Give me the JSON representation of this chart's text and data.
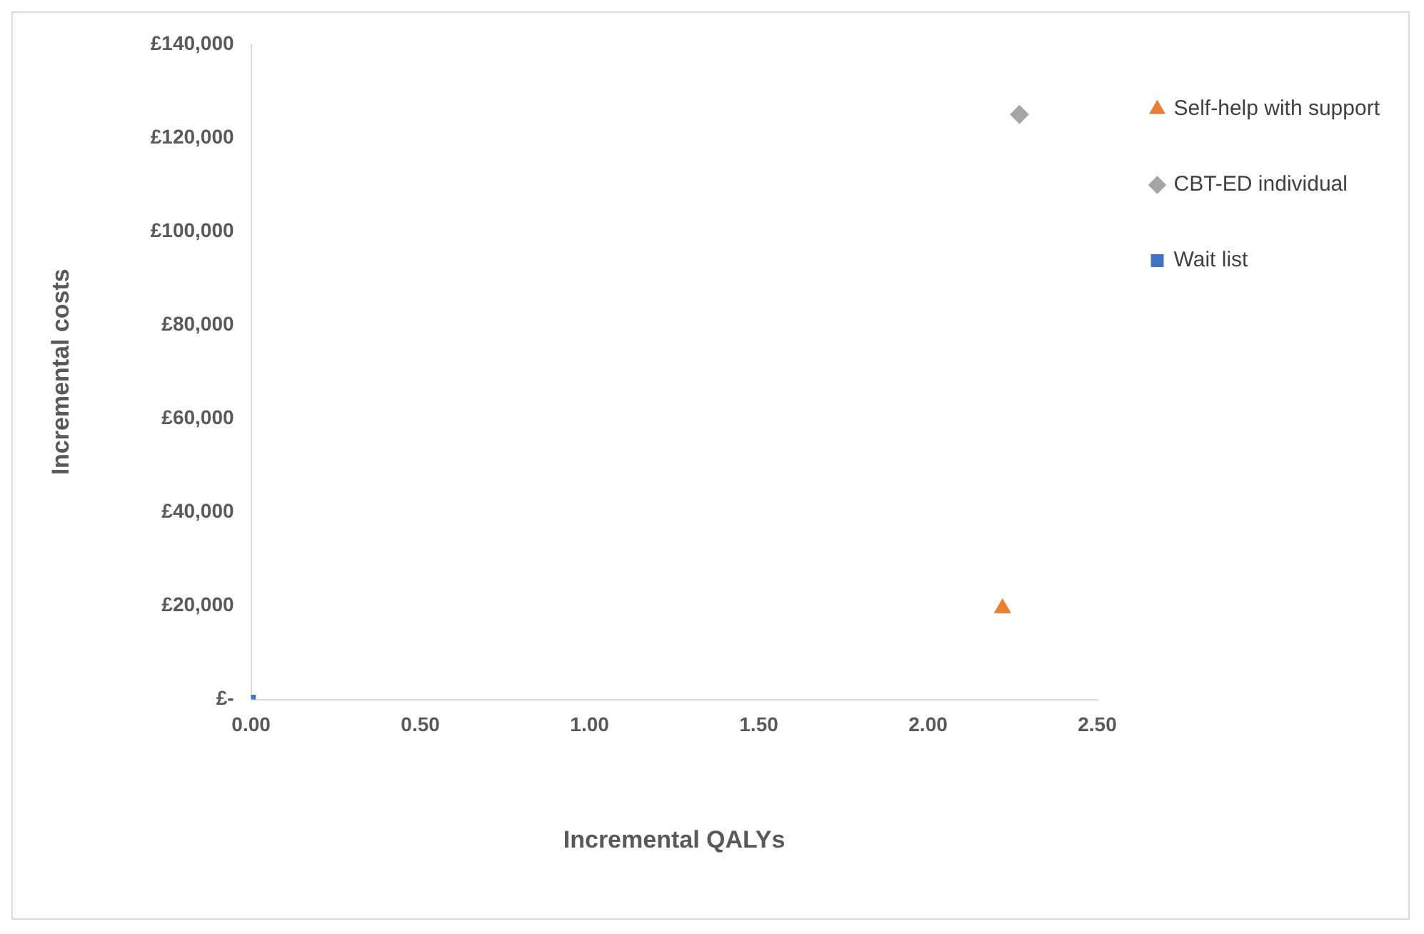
{
  "chart_data": {
    "type": "scatter",
    "xlabel": "Incremental QALYs",
    "ylabel": "Incremental costs",
    "series": [
      {
        "name": "Self-help with support",
        "color": "#ed7d31",
        "marker": "triangle",
        "x": [
          2.22
        ],
        "values": [
          19500
        ]
      },
      {
        "name": "CBT-ED individual",
        "color": "#a5a5a5",
        "marker": "diamond",
        "x": [
          2.27
        ],
        "values": [
          125000
        ]
      },
      {
        "name": "Wait list",
        "color": "#4472c4",
        "marker": "square",
        "x": [
          0
        ],
        "values": [
          0
        ]
      }
    ],
    "xlim": [
      0,
      2.5
    ],
    "xticks": [
      {
        "value": 0,
        "label": "0.00"
      },
      {
        "value": 0.5,
        "label": "0.50"
      },
      {
        "value": 1,
        "label": "1.00"
      },
      {
        "value": 1.5,
        "label": "1.50"
      },
      {
        "value": 2,
        "label": "2.00"
      },
      {
        "value": 2.5,
        "label": "2.50"
      }
    ],
    "ylim": [
      0,
      140000
    ],
    "yticks": [
      {
        "value": 0,
        "label": "£-"
      },
      {
        "value": 20000,
        "label": "£20,000"
      },
      {
        "value": 40000,
        "label": "£40,000"
      },
      {
        "value": 60000,
        "label": "£60,000"
      },
      {
        "value": 80000,
        "label": "£80,000"
      },
      {
        "value": 100000,
        "label": "£100,000"
      },
      {
        "value": 120000,
        "label": "£120,000"
      },
      {
        "value": 140000,
        "label": "£140,000"
      }
    ],
    "grid": false,
    "legend": "right"
  }
}
